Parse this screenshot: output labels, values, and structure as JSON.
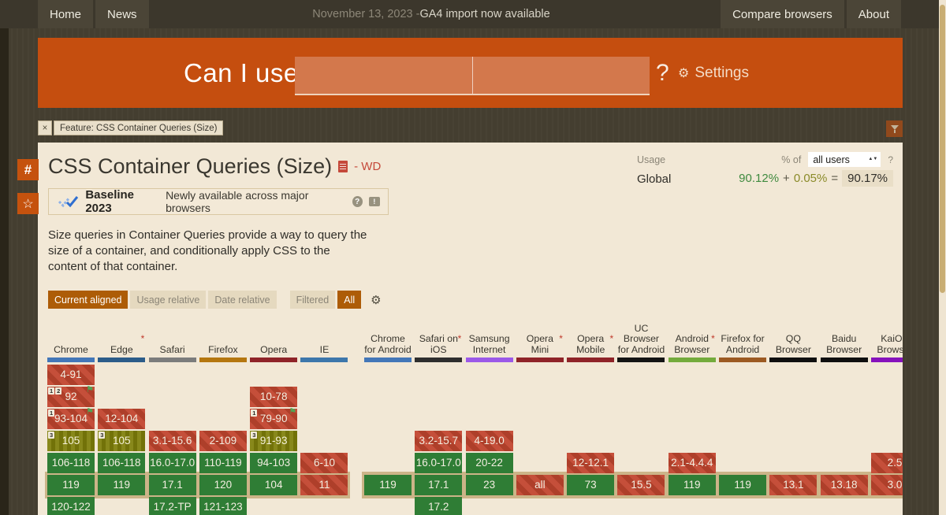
{
  "topbar": {
    "left": [
      {
        "label": "Home"
      },
      {
        "label": "News"
      }
    ],
    "announcement": {
      "date": "November 13, 2023 - ",
      "text": "GA4 import now available"
    },
    "right": [
      {
        "label": "Compare browsers"
      },
      {
        "label": "About"
      }
    ]
  },
  "hero": {
    "title": "Can I use",
    "search_value_1": "",
    "search_value_2": "",
    "question_mark": "?",
    "settings_gear": "⚙",
    "settings_label": "Settings"
  },
  "feature_tag": {
    "close": "×",
    "label": "Feature: CSS Container Queries (Size)"
  },
  "sidebar": {
    "hash": "#",
    "star": "☆"
  },
  "page": {
    "title": "CSS Container Queries (Size)",
    "spec_status": "- WD"
  },
  "usage": {
    "label": "Usage",
    "percent_of": "% of",
    "select_value": "all users",
    "help": "?",
    "region": "Global",
    "supported": "90.12%",
    "plus": "+",
    "partial": "0.05%",
    "equals": "=",
    "total": "90.17%"
  },
  "baseline": {
    "title": "Baseline 2023",
    "subtitle": "Newly available across major browsers",
    "help": "?",
    "feedback": "!"
  },
  "description": "Size queries in Container Queries provide a way to query the size of a container, and conditionally apply CSS to the content of that container.",
  "filters": {
    "view_buttons": [
      {
        "label": "Current aligned",
        "active": true
      },
      {
        "label": "Usage relative",
        "active": false
      },
      {
        "label": "Date relative",
        "active": false
      }
    ],
    "filter_buttons": [
      {
        "label": "Filtered",
        "active": false
      },
      {
        "label": "All",
        "active": true
      }
    ],
    "gear": "⚙"
  },
  "colors": {
    "accent_orange": "#c54e0f",
    "supported_green": "#2f7d35",
    "unsupported_red": "#c2462f",
    "partial_olive": "#7f7f0a",
    "current_row_highlight": "#ccb488"
  },
  "support_table": {
    "row_count": 7,
    "current_row_index": 5,
    "legend_flag": "⚑",
    "groups": [
      {
        "name": "desktop",
        "browsers": [
          {
            "label": "Chrome",
            "asterisk": false,
            "bar_color": "#4377b8",
            "cells": [
              {
                "row": 0,
                "text": "4-91",
                "type": "u"
              },
              {
                "row": 1,
                "text": "92",
                "type": "u",
                "notes": [
                  "1",
                  "2"
                ],
                "flag": true
              },
              {
                "row": 2,
                "text": "93-104",
                "type": "u",
                "notes": [
                  "1"
                ],
                "flag": true
              },
              {
                "row": 3,
                "text": "105",
                "type": "p",
                "notes": [
                  "3"
                ]
              },
              {
                "row": 4,
                "text": "106-118",
                "type": "y"
              },
              {
                "row": 5,
                "text": "119",
                "type": "y"
              },
              {
                "row": 6,
                "text": "120-122",
                "type": "y"
              }
            ]
          },
          {
            "label": "Edge",
            "asterisk": true,
            "bar_color": "#2c5c89",
            "cells": [
              {
                "row": 2,
                "text": "12-104",
                "type": "u"
              },
              {
                "row": 3,
                "text": "105",
                "type": "p",
                "notes": [
                  "3"
                ]
              },
              {
                "row": 4,
                "text": "106-118",
                "type": "y"
              },
              {
                "row": 5,
                "text": "119",
                "type": "y"
              }
            ]
          },
          {
            "label": "Safari",
            "asterisk": false,
            "bar_color": "#7c7c7c",
            "cells": [
              {
                "row": 3,
                "text": "3.1-15.6",
                "type": "u"
              },
              {
                "row": 4,
                "text": "16.0-17.0",
                "type": "y"
              },
              {
                "row": 5,
                "text": "17.1",
                "type": "y"
              },
              {
                "row": 6,
                "text": "17.2-TP",
                "type": "y"
              }
            ]
          },
          {
            "label": "Firefox",
            "asterisk": false,
            "bar_color": "#b5770f",
            "cells": [
              {
                "row": 3,
                "text": "2-109",
                "type": "u"
              },
              {
                "row": 4,
                "text": "110-119",
                "type": "y"
              },
              {
                "row": 5,
                "text": "120",
                "type": "y"
              },
              {
                "row": 6,
                "text": "121-123",
                "type": "y"
              }
            ]
          },
          {
            "label": "Opera",
            "asterisk": false,
            "bar_color": "#8f2328",
            "cells": [
              {
                "row": 1,
                "text": "10-78",
                "type": "u"
              },
              {
                "row": 2,
                "text": "79-90",
                "type": "u",
                "notes": [
                  "1"
                ],
                "flag": true
              },
              {
                "row": 3,
                "text": "91-93",
                "type": "p",
                "notes": [
                  "3"
                ]
              },
              {
                "row": 4,
                "text": "94-103",
                "type": "y"
              },
              {
                "row": 5,
                "text": "104",
                "type": "y"
              }
            ]
          },
          {
            "label": "IE",
            "asterisk": false,
            "bar_color": "#3d77ab",
            "cells": [
              {
                "row": 4,
                "text": "6-10",
                "type": "u"
              },
              {
                "row": 5,
                "text": "11",
                "type": "u"
              }
            ]
          }
        ]
      },
      {
        "name": "mobile",
        "browsers": [
          {
            "label": "Chrome for Android",
            "asterisk": false,
            "bar_color": "#4377b8",
            "cells": [
              {
                "row": 5,
                "text": "119",
                "type": "y"
              }
            ]
          },
          {
            "label": "Safari on iOS",
            "asterisk": true,
            "bar_color": "#2e2e2e",
            "cells": [
              {
                "row": 3,
                "text": "3.2-15.7",
                "type": "u"
              },
              {
                "row": 4,
                "text": "16.0-17.0",
                "type": "y"
              },
              {
                "row": 5,
                "text": "17.1",
                "type": "y"
              },
              {
                "row": 6,
                "text": "17.2",
                "type": "y"
              }
            ]
          },
          {
            "label": "Samsung Internet",
            "asterisk": false,
            "bar_color": "#9b59e8",
            "cells": [
              {
                "row": 3,
                "text": "4-19.0",
                "type": "u"
              },
              {
                "row": 4,
                "text": "20-22",
                "type": "y"
              },
              {
                "row": 5,
                "text": "23",
                "type": "y"
              }
            ]
          },
          {
            "label": "Opera Mini",
            "asterisk": true,
            "bar_color": "#8f2328",
            "cells": [
              {
                "row": 5,
                "text": "all",
                "type": "u"
              }
            ]
          },
          {
            "label": "Opera Mobile",
            "asterisk": true,
            "bar_color": "#8f2328",
            "cells": [
              {
                "row": 4,
                "text": "12-12.1",
                "type": "u"
              },
              {
                "row": 5,
                "text": "73",
                "type": "y"
              }
            ]
          },
          {
            "label": "UC Browser for Android",
            "asterisk": false,
            "bar_color": "#141414",
            "cells": [
              {
                "row": 5,
                "text": "15.5",
                "type": "u"
              }
            ]
          },
          {
            "label": "Android Browser",
            "asterisk": true,
            "bar_color": "#74ab3c",
            "cells": [
              {
                "row": 4,
                "text": "2.1-4.4.4",
                "type": "u"
              },
              {
                "row": 5,
                "text": "119",
                "type": "y"
              }
            ]
          },
          {
            "label": "Firefox for Android",
            "asterisk": false,
            "bar_color": "#9c5a22",
            "cells": [
              {
                "row": 5,
                "text": "119",
                "type": "y"
              }
            ]
          },
          {
            "label": "QQ Browser",
            "asterisk": false,
            "bar_color": "#0f0f0f",
            "cells": [
              {
                "row": 5,
                "text": "13.1",
                "type": "u"
              }
            ]
          },
          {
            "label": "Baidu Browser",
            "asterisk": false,
            "bar_color": "#0f0f0f",
            "cells": [
              {
                "row": 5,
                "text": "13.18",
                "type": "u"
              }
            ]
          },
          {
            "label": "KaiOS Browser",
            "asterisk": false,
            "bar_color": "#8612bc",
            "cells": [
              {
                "row": 4,
                "text": "2.5",
                "type": "u"
              },
              {
                "row": 5,
                "text": "3.0",
                "type": "u"
              }
            ]
          }
        ]
      }
    ]
  }
}
